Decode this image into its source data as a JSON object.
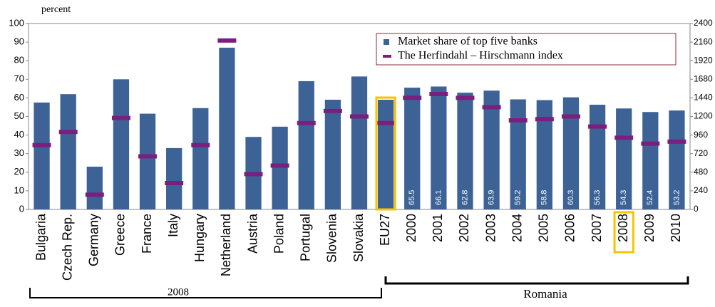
{
  "chart_data": {
    "type": "bar",
    "y_label": "percent",
    "categories": [
      "Bulgaria",
      "Czech Rep.",
      "Germany",
      "Greece",
      "France",
      "Italy",
      "Hungary",
      "Netherland",
      "Austria",
      "Poland",
      "Portugal",
      "Slovenia",
      "Slovakia",
      "EU27",
      "2000",
      "2001",
      "2002",
      "2003",
      "2004",
      "2005",
      "2006",
      "2007",
      "2008",
      "2009",
      "2010"
    ],
    "series": [
      {
        "name": "Market share of top five banks",
        "color": "#3d6396",
        "values": [
          57.5,
          62,
          23,
          70,
          51.5,
          33,
          54.5,
          87,
          39,
          44.5,
          69,
          59,
          71.5,
          59,
          65.5,
          66.1,
          62.8,
          63.9,
          59.2,
          58.8,
          60.3,
          56.3,
          54.3,
          52.4,
          53.2
        ],
        "value_labels": [
          null,
          null,
          null,
          null,
          null,
          null,
          null,
          null,
          null,
          null,
          null,
          null,
          null,
          null,
          "65.5",
          "66.1",
          "62.8",
          "63.9",
          "59.2",
          "58.8",
          "60.3",
          "56.3",
          "54.3",
          "52.4",
          "53.2"
        ]
      },
      {
        "name": "The Herfindahl – Hirschmann index",
        "color": "#7b1f7f",
        "axis": "y2",
        "values": [
          830,
          1000,
          190,
          1180,
          685,
          340,
          830,
          2180,
          455,
          565,
          1115,
          1270,
          1200,
          1115,
          1440,
          1490,
          1440,
          1320,
          1150,
          1165,
          1200,
          1070,
          925,
          850,
          875
        ]
      }
    ],
    "ylim": [
      0,
      100
    ],
    "yticks": [
      0,
      10,
      20,
      30,
      40,
      50,
      60,
      70,
      80,
      90,
      100
    ],
    "y2lim": [
      0,
      2400
    ],
    "y2ticks": [
      0,
      240,
      480,
      720,
      960,
      1200,
      1440,
      1680,
      1920,
      2160,
      2400
    ],
    "grid": false,
    "groups": [
      "2008",
      "Romania"
    ]
  }
}
